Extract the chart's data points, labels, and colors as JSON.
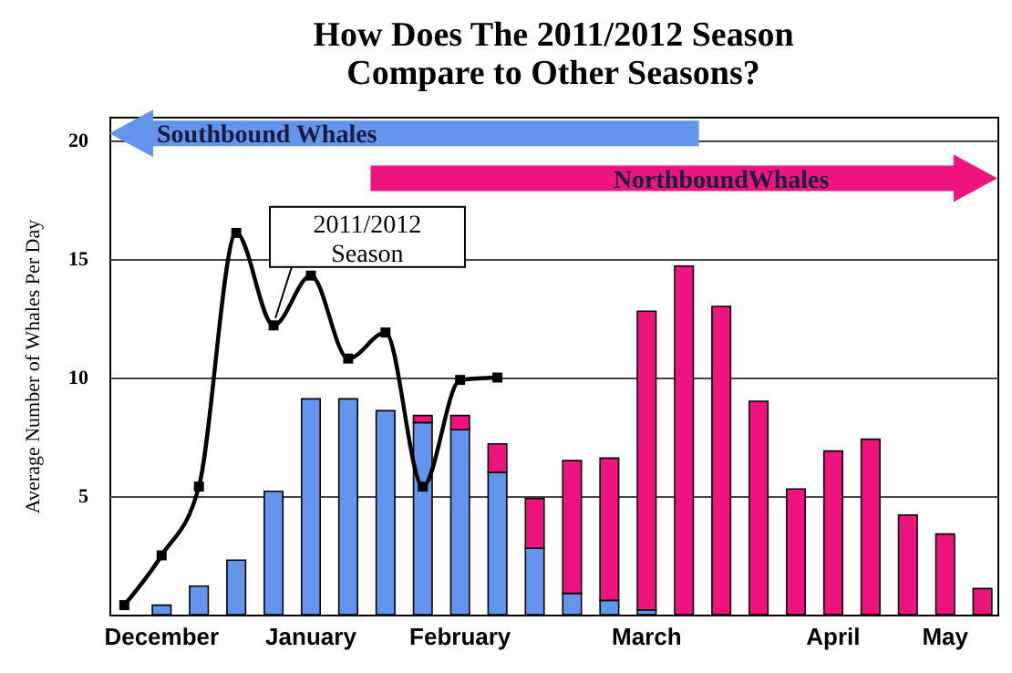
{
  "chart_data": {
    "type": "bar",
    "title": "How Does The 2011/2012 Season\nCompare to Other Seasons?",
    "ylabel": "Average Number of Whales Per Day",
    "categories": [
      null,
      "December",
      null,
      null,
      null,
      "January",
      null,
      null,
      null,
      "February",
      null,
      null,
      null,
      null,
      "March",
      null,
      null,
      null,
      null,
      "April",
      null,
      null,
      "May",
      null
    ],
    "stacked": true,
    "grid": "y",
    "ylim": [
      0,
      21
    ],
    "yticks": [
      5,
      10,
      15,
      20
    ],
    "annotations": [
      "Southbound Whales",
      "NorthboundWhales"
    ],
    "series": [
      {
        "color": "#6495ed",
        "values": [
          null,
          0.4,
          1.2,
          2.3,
          5.2,
          9.1,
          9.1,
          8.6,
          8.1,
          7.8,
          6.0,
          2.8,
          0.9,
          0.6,
          0.2,
          null,
          null,
          null,
          null,
          null,
          null,
          null,
          null,
          null
        ]
      },
      {
        "color": "#f0147f",
        "values": [
          null,
          null,
          null,
          null,
          null,
          null,
          null,
          null,
          0.3,
          0.6,
          1.2,
          2.1,
          5.6,
          6.0,
          12.6,
          14.7,
          13.0,
          9.0,
          5.3,
          6.9,
          7.4,
          4.2,
          3.4,
          1.1
        ]
      },
      {
        "type": "line",
        "name": "2011/2012 Season",
        "color": "#000000",
        "marker": "square",
        "values": [
          0.4,
          2.5,
          5.4,
          16.1,
          12.2,
          14.3,
          10.8,
          11.9,
          5.4,
          9.9,
          10.0,
          null,
          null,
          null,
          null,
          null,
          null,
          null,
          null,
          null,
          null,
          null,
          null,
          null
        ]
      }
    ]
  }
}
